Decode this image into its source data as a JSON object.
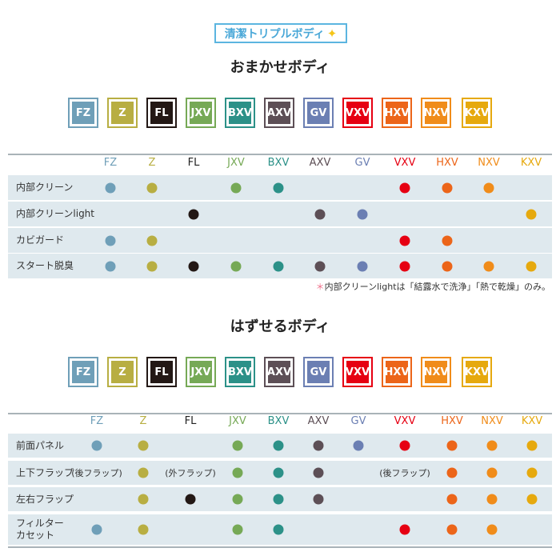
{
  "tag": {
    "label": "清潔トリプルボディ",
    "icon": "sparkle-icon"
  },
  "models": [
    {
      "name": "FZ",
      "color": "#6f9fb8"
    },
    {
      "name": "Z",
      "color": "#b8ae42"
    },
    {
      "name": "FL",
      "color": "#231815"
    },
    {
      "name": "JXV",
      "color": "#76a956"
    },
    {
      "name": "BXV",
      "color": "#2c9188"
    },
    {
      "name": "AXV",
      "color": "#5d4f56"
    },
    {
      "name": "GV",
      "color": "#6b7fb3"
    },
    {
      "name": "VXV",
      "color": "#e60012"
    },
    {
      "name": "HXV",
      "color": "#ec6519"
    },
    {
      "name": "NXV",
      "color": "#f08c1a"
    },
    {
      "name": "KXV",
      "color": "#e6a90e"
    }
  ],
  "sections": [
    {
      "title": "おまかせボディ",
      "rows": [
        {
          "label": "内部クリーン",
          "cells": [
            1,
            1,
            0,
            1,
            1,
            0,
            0,
            1,
            1,
            1,
            0
          ]
        },
        {
          "label": "内部クリーンlight",
          "cells": [
            0,
            0,
            1,
            0,
            0,
            1,
            1,
            0,
            0,
            0,
            1
          ]
        },
        {
          "label": "カビガード",
          "cells": [
            1,
            1,
            0,
            0,
            0,
            0,
            0,
            1,
            1,
            0,
            0
          ]
        },
        {
          "label": "スタート脱臭",
          "cells": [
            1,
            1,
            1,
            1,
            1,
            1,
            1,
            1,
            1,
            1,
            1
          ]
        }
      ],
      "note": {
        "mark": "＊",
        "text": "内部クリーンlightは「結露水で洗浄」「熱で乾燥」のみ。"
      }
    },
    {
      "title": "はずせるボディ",
      "rows": [
        {
          "label": "前面パネル",
          "cells": [
            1,
            1,
            0,
            1,
            1,
            1,
            1,
            1,
            1,
            1,
            1
          ]
        },
        {
          "label": "上下フラップ",
          "cells": [
            "(後フラップ)",
            1,
            "(外フラップ)",
            1,
            1,
            1,
            0,
            "(後フラップ)",
            1,
            1,
            1
          ]
        },
        {
          "label": "左右フラップ",
          "cells": [
            0,
            1,
            1,
            1,
            1,
            1,
            0,
            0,
            1,
            1,
            1
          ]
        },
        {
          "label": "フィルター\nカセット",
          "cells": [
            1,
            1,
            0,
            1,
            1,
            0,
            0,
            1,
            1,
            1,
            0
          ]
        }
      ]
    }
  ]
}
